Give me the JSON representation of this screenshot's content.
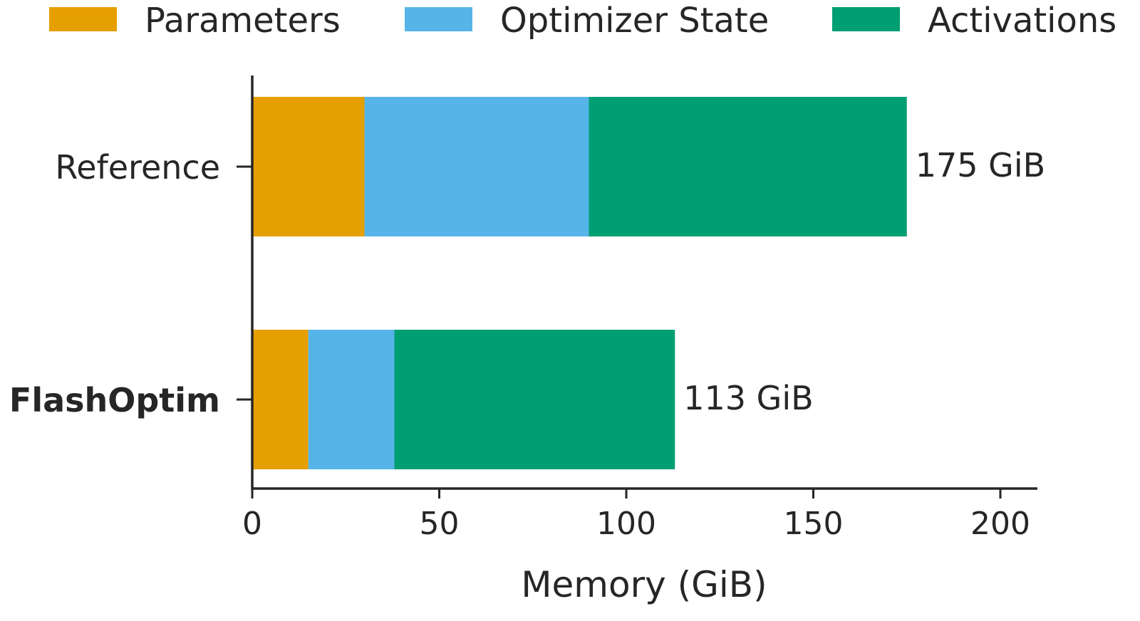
{
  "chart_data": {
    "type": "bar",
    "orientation": "horizontal",
    "stacked": true,
    "title": "",
    "xlabel": "Memory (GiB)",
    "ylabel": "",
    "xlim": [
      0,
      210
    ],
    "xticks": [
      0,
      50,
      100,
      150,
      200
    ],
    "grid": false,
    "legend_position": "top",
    "categories": [
      "Reference",
      "FlashOptim"
    ],
    "bold_categories": [
      "FlashOptim"
    ],
    "series": [
      {
        "name": "Parameters",
        "color": "#E69F00",
        "values": [
          30,
          15
        ]
      },
      {
        "name": "Optimizer State",
        "color": "#56B4E9",
        "values": [
          60,
          23
        ]
      },
      {
        "name": "Activations",
        "color": "#009E73",
        "values": [
          85,
          75
        ]
      }
    ],
    "totals": [
      175,
      113
    ],
    "total_labels": [
      "175 GiB",
      "113 GiB"
    ]
  }
}
